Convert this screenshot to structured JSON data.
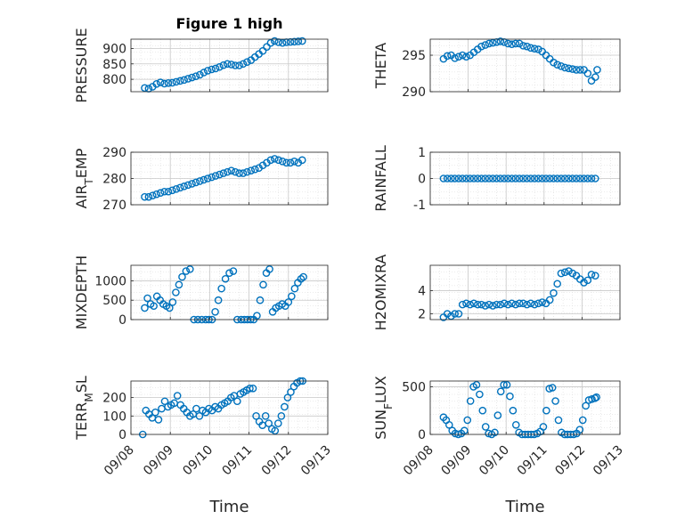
{
  "chart_data": [
    {
      "type": "scatter",
      "title": "Figure 1 high",
      "ylabel": "PRESSURE",
      "xlabel": "",
      "ylim": [
        760,
        930
      ],
      "yticks": [
        800,
        850,
        900
      ],
      "xlim": [
        0,
        5
      ],
      "x": [
        0.35,
        0.45,
        0.55,
        0.65,
        0.75,
        0.85,
        0.95,
        1.05,
        1.15,
        1.25,
        1.35,
        1.45,
        1.55,
        1.65,
        1.75,
        1.85,
        1.95,
        2.05,
        2.15,
        2.25,
        2.35,
        2.45,
        2.55,
        2.65,
        2.75,
        2.85,
        2.95,
        3.05,
        3.15,
        3.25,
        3.35,
        3.45,
        3.55,
        3.65,
        3.75,
        3.85,
        3.95,
        4.05,
        4.15,
        4.25,
        4.35
      ],
      "y": [
        772,
        770,
        776,
        785,
        790,
        786,
        788,
        789,
        792,
        795,
        798,
        802,
        806,
        810,
        815,
        822,
        828,
        832,
        835,
        840,
        846,
        850,
        848,
        845,
        845,
        850,
        856,
        862,
        872,
        882,
        892,
        905,
        918,
        924,
        920,
        918,
        920,
        921,
        922,
        923,
        924
      ]
    },
    {
      "type": "scatter",
      "ylabel": "THETA",
      "xlabel": "",
      "ylim": [
        290,
        297.2
      ],
      "yticks": [
        290,
        295
      ],
      "xlim": [
        0,
        5
      ],
      "x": [
        0.35,
        0.45,
        0.55,
        0.65,
        0.75,
        0.85,
        0.95,
        1.05,
        1.15,
        1.25,
        1.35,
        1.45,
        1.55,
        1.65,
        1.75,
        1.85,
        1.95,
        2.05,
        2.15,
        2.25,
        2.35,
        2.45,
        2.55,
        2.65,
        2.75,
        2.85,
        2.95,
        3.05,
        3.15,
        3.25,
        3.35,
        3.45,
        3.55,
        3.65,
        3.75,
        3.85,
        3.95,
        4.05,
        4.15,
        4.25,
        4.35,
        4.4
      ],
      "y": [
        294.5,
        294.9,
        295.0,
        294.6,
        294.8,
        295.0,
        294.8,
        295.0,
        295.4,
        295.8,
        296.2,
        296.4,
        296.6,
        296.7,
        296.8,
        296.9,
        296.8,
        296.6,
        296.5,
        296.6,
        296.6,
        296.3,
        296.2,
        296.0,
        295.9,
        295.8,
        295.5,
        295.0,
        294.5,
        294.0,
        293.7,
        293.5,
        293.3,
        293.2,
        293.1,
        293.0,
        293.0,
        293.0,
        292.5,
        291.5,
        292.0,
        293.0
      ]
    },
    {
      "type": "scatter",
      "ylabel": "AIR_TEMP",
      "xlabel": "",
      "ylim": [
        270,
        290
      ],
      "yticks": [
        270,
        280,
        290
      ],
      "xlim": [
        0,
        5
      ],
      "x": [
        0.35,
        0.45,
        0.55,
        0.65,
        0.75,
        0.85,
        0.95,
        1.05,
        1.15,
        1.25,
        1.35,
        1.45,
        1.55,
        1.65,
        1.75,
        1.85,
        1.95,
        2.05,
        2.15,
        2.25,
        2.35,
        2.45,
        2.55,
        2.65,
        2.75,
        2.85,
        2.95,
        3.05,
        3.15,
        3.25,
        3.35,
        3.45,
        3.55,
        3.65,
        3.75,
        3.85,
        3.95,
        4.05,
        4.15,
        4.25,
        4.35
      ],
      "y": [
        273,
        273,
        273.5,
        274,
        274.5,
        275,
        275,
        275.5,
        276,
        276.5,
        277,
        277.5,
        278,
        278.5,
        279,
        279.5,
        280,
        280.5,
        281,
        281.5,
        282,
        282.5,
        283,
        282.5,
        282,
        282,
        282.5,
        283,
        283.5,
        284,
        285,
        286,
        287,
        287.5,
        287,
        286.5,
        286,
        286,
        286.5,
        286,
        287
      ]
    },
    {
      "type": "scatter",
      "ylabel": "RAINFALL",
      "xlabel": "",
      "ylim": [
        -1,
        1
      ],
      "yticks": [
        -1,
        0,
        1
      ],
      "xlim": [
        0,
        5
      ],
      "x": [
        0.35,
        0.45,
        0.55,
        0.65,
        0.75,
        0.85,
        0.95,
        1.05,
        1.15,
        1.25,
        1.35,
        1.45,
        1.55,
        1.65,
        1.75,
        1.85,
        1.95,
        2.05,
        2.15,
        2.25,
        2.35,
        2.45,
        2.55,
        2.65,
        2.75,
        2.85,
        2.95,
        3.05,
        3.15,
        3.25,
        3.35,
        3.45,
        3.55,
        3.65,
        3.75,
        3.85,
        3.95,
        4.05,
        4.15,
        4.25,
        4.35
      ],
      "y": [
        0,
        0,
        0,
        0,
        0,
        0,
        0,
        0,
        0,
        0,
        0,
        0,
        0,
        0,
        0,
        0,
        0,
        0,
        0,
        0,
        0,
        0,
        0,
        0,
        0,
        0,
        0,
        0,
        0,
        0,
        0,
        0,
        0,
        0,
        0,
        0,
        0,
        0,
        0,
        0,
        0
      ]
    },
    {
      "type": "scatter",
      "ylabel": "MIXDEPTH",
      "xlabel": "",
      "ylim": [
        0,
        1400
      ],
      "yticks": [
        0,
        500,
        1000
      ],
      "xlim": [
        0,
        5
      ],
      "x": [
        0.35,
        0.42,
        0.5,
        0.58,
        0.66,
        0.74,
        0.82,
        0.9,
        0.98,
        1.06,
        1.14,
        1.22,
        1.3,
        1.4,
        1.5,
        1.6,
        1.7,
        1.8,
        1.9,
        1.98,
        2.06,
        2.14,
        2.22,
        2.3,
        2.4,
        2.5,
        2.6,
        2.7,
        2.8,
        2.88,
        2.96,
        3.04,
        3.12,
        3.2,
        3.28,
        3.36,
        3.44,
        3.52,
        3.6,
        3.68,
        3.76,
        3.84,
        3.92,
        4.0,
        4.08,
        4.16,
        4.24,
        4.32,
        4.38
      ],
      "y": [
        300,
        550,
        400,
        350,
        600,
        500,
        400,
        350,
        300,
        450,
        700,
        900,
        1100,
        1250,
        1300,
        0,
        0,
        0,
        0,
        0,
        0,
        200,
        500,
        800,
        1050,
        1200,
        1250,
        0,
        0,
        0,
        0,
        0,
        0,
        100,
        500,
        900,
        1200,
        1300,
        200,
        300,
        350,
        400,
        350,
        450,
        600,
        800,
        950,
        1050,
        1100
      ]
    },
    {
      "type": "scatter",
      "ylabel": "H2OMIXRA",
      "xlabel": "",
      "ylim": [
        1.5,
        6.2
      ],
      "yticks": [
        2,
        4
      ],
      "xlim": [
        0,
        5
      ],
      "x": [
        0.35,
        0.45,
        0.55,
        0.65,
        0.75,
        0.85,
        0.95,
        1.05,
        1.15,
        1.25,
        1.35,
        1.45,
        1.55,
        1.65,
        1.75,
        1.85,
        1.95,
        2.05,
        2.15,
        2.25,
        2.35,
        2.45,
        2.55,
        2.65,
        2.75,
        2.85,
        2.95,
        3.05,
        3.15,
        3.25,
        3.35,
        3.45,
        3.55,
        3.65,
        3.75,
        3.85,
        3.95,
        4.05,
        4.15,
        4.25,
        4.35
      ],
      "y": [
        1.7,
        2.0,
        1.8,
        2.0,
        2.0,
        2.8,
        2.9,
        2.8,
        2.9,
        2.8,
        2.8,
        2.7,
        2.8,
        2.7,
        2.8,
        2.8,
        2.9,
        2.8,
        2.9,
        2.8,
        2.9,
        2.9,
        2.8,
        2.9,
        2.8,
        2.9,
        3.0,
        2.9,
        3.2,
        3.8,
        4.6,
        5.5,
        5.6,
        5.7,
        5.5,
        5.3,
        5.0,
        4.7,
        4.9,
        5.4,
        5.3
      ]
    },
    {
      "type": "scatter",
      "ylabel": "TERR_MSL",
      "xlabel": "Time",
      "ylim": [
        0,
        290
      ],
      "yticks": [
        0,
        100,
        200
      ],
      "xlim": [
        0,
        5
      ],
      "xticks": [
        "09/08",
        "09/09",
        "09/10",
        "09/11",
        "09/12",
        "09/13"
      ],
      "x": [
        0.3,
        0.38,
        0.46,
        0.54,
        0.62,
        0.7,
        0.78,
        0.86,
        0.94,
        1.02,
        1.1,
        1.18,
        1.26,
        1.34,
        1.42,
        1.5,
        1.58,
        1.66,
        1.74,
        1.82,
        1.9,
        1.98,
        2.06,
        2.14,
        2.22,
        2.3,
        2.38,
        2.46,
        2.54,
        2.62,
        2.7,
        2.78,
        2.86,
        2.94,
        3.02,
        3.1,
        3.18,
        3.26,
        3.34,
        3.42,
        3.5,
        3.58,
        3.66,
        3.74,
        3.82,
        3.9,
        3.98,
        4.06,
        4.14,
        4.22,
        4.3,
        4.36
      ],
      "y": [
        0,
        130,
        110,
        90,
        120,
        80,
        140,
        180,
        150,
        160,
        170,
        210,
        160,
        140,
        120,
        100,
        110,
        140,
        100,
        130,
        120,
        140,
        130,
        150,
        140,
        160,
        170,
        180,
        200,
        210,
        180,
        220,
        230,
        240,
        250,
        250,
        100,
        70,
        50,
        100,
        60,
        30,
        20,
        60,
        100,
        150,
        200,
        230,
        260,
        280,
        290,
        290
      ]
    },
    {
      "type": "scatter",
      "ylabel": "SUN_FLUX",
      "xlabel": "Time",
      "ylim": [
        0,
        560
      ],
      "yticks": [
        0,
        500
      ],
      "xlim": [
        0,
        5
      ],
      "xticks": [
        "09/08",
        "09/09",
        "09/10",
        "09/11",
        "09/12",
        "09/13"
      ],
      "x": [
        0.35,
        0.42,
        0.5,
        0.58,
        0.66,
        0.74,
        0.82,
        0.9,
        0.98,
        1.06,
        1.14,
        1.22,
        1.3,
        1.38,
        1.46,
        1.54,
        1.62,
        1.7,
        1.78,
        1.86,
        1.94,
        2.02,
        2.1,
        2.18,
        2.26,
        2.34,
        2.42,
        2.5,
        2.58,
        2.66,
        2.74,
        2.82,
        2.9,
        2.98,
        3.06,
        3.14,
        3.22,
        3.3,
        3.38,
        3.46,
        3.54,
        3.62,
        3.7,
        3.78,
        3.86,
        3.94,
        4.02,
        4.1,
        4.18,
        4.26,
        4.34,
        4.38
      ],
      "y": [
        180,
        150,
        100,
        40,
        10,
        0,
        10,
        40,
        150,
        350,
        500,
        520,
        420,
        250,
        80,
        10,
        0,
        20,
        200,
        450,
        520,
        520,
        400,
        250,
        100,
        20,
        0,
        0,
        0,
        0,
        0,
        10,
        30,
        80,
        250,
        480,
        490,
        350,
        150,
        20,
        0,
        0,
        0,
        0,
        10,
        50,
        150,
        300,
        360,
        370,
        380,
        390
      ]
    }
  ]
}
